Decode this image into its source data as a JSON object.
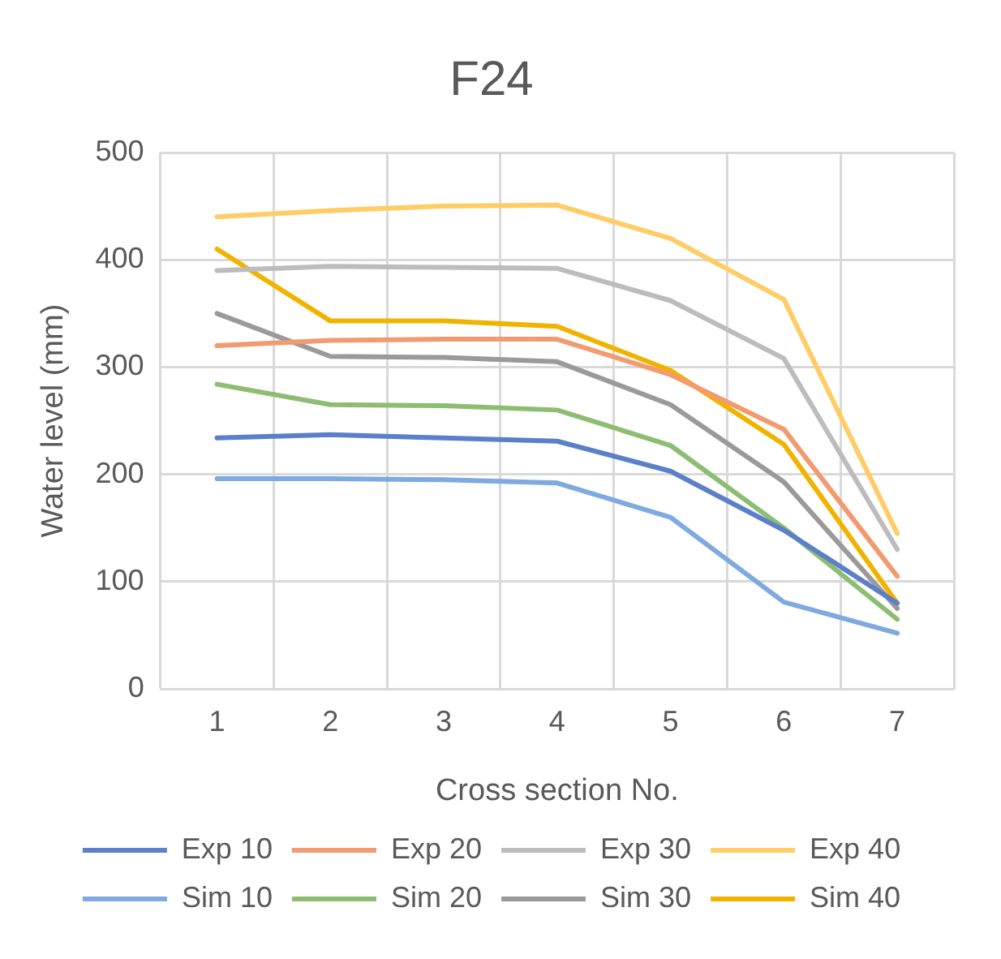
{
  "chart_data": {
    "type": "line",
    "title": "F24",
    "xlabel": "Cross section No.",
    "ylabel": "Water level (mm)",
    "categories": [
      "1",
      "2",
      "3",
      "4",
      "5",
      "6",
      "7"
    ],
    "series": [
      {
        "name": "Exp 10",
        "color": "#5b7fc9",
        "values": [
          234,
          237,
          234,
          231,
          203,
          148,
          80
        ]
      },
      {
        "name": "Exp 20",
        "color": "#f29a70",
        "values": [
          320,
          325,
          326,
          326,
          293,
          242,
          105
        ]
      },
      {
        "name": "Exp 30",
        "color": "#bcbcbc",
        "values": [
          390,
          394,
          393,
          392,
          362,
          308,
          130
        ]
      },
      {
        "name": "Exp 40",
        "color": "#ffcc66",
        "values": [
          440,
          446,
          450,
          451,
          420,
          363,
          145
        ]
      },
      {
        "name": "Sim 10",
        "color": "#7eaadf",
        "values": [
          196,
          196,
          195,
          192,
          160,
          81,
          52
        ]
      },
      {
        "name": "Sim 20",
        "color": "#8dbd72",
        "values": [
          284,
          265,
          264,
          260,
          227,
          150,
          65
        ]
      },
      {
        "name": "Sim 30",
        "color": "#9a9a9a",
        "values": [
          350,
          310,
          309,
          305,
          265,
          193,
          75
        ]
      },
      {
        "name": "Sim 40",
        "color": "#f0b400",
        "values": [
          410,
          343,
          343,
          338,
          297,
          228,
          80
        ]
      }
    ],
    "ylim": [
      0,
      500
    ],
    "yticks": [
      0,
      100,
      200,
      300,
      400,
      500
    ],
    "grid": true,
    "legend": "bottom",
    "marker": "none",
    "line_style": "solid"
  }
}
